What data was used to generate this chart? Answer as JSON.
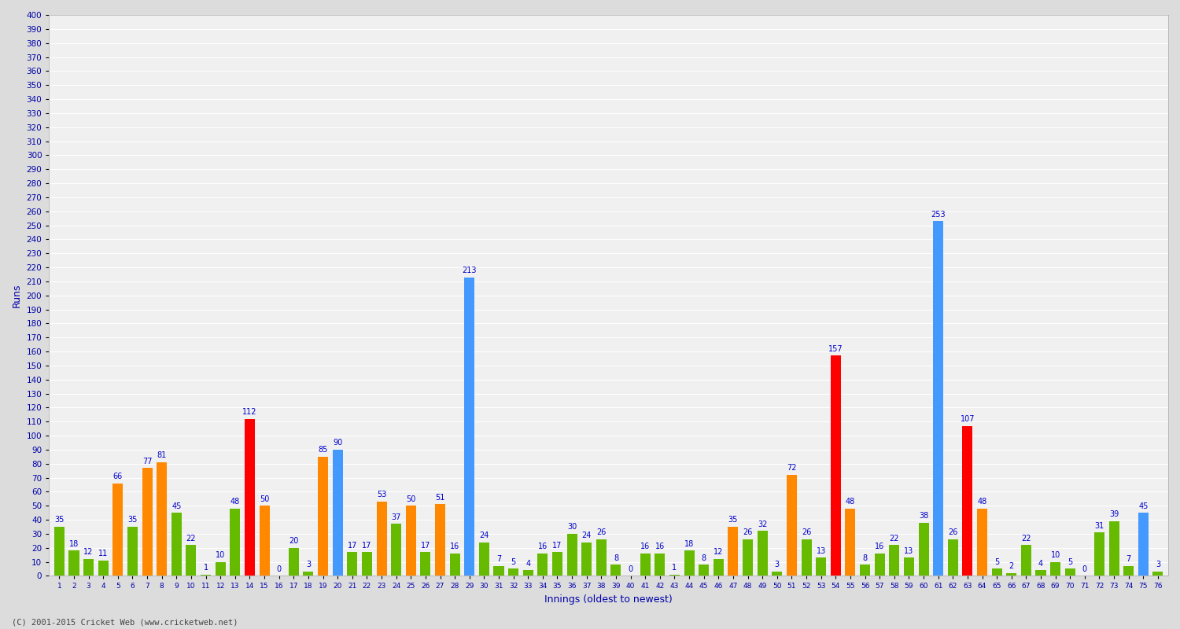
{
  "xlabel": "Innings (oldest to newest)",
  "ylabel": "Runs",
  "background_color": "#dcdcdc",
  "plot_background": "#f0f0f0",
  "bar_width": 0.7,
  "ylim": [
    0,
    400
  ],
  "yticks": [
    0,
    10,
    20,
    30,
    40,
    50,
    60,
    70,
    80,
    90,
    100,
    110,
    120,
    130,
    140,
    150,
    160,
    170,
    180,
    190,
    200,
    210,
    220,
    230,
    240,
    250,
    260,
    270,
    280,
    290,
    300,
    310,
    320,
    330,
    340,
    350,
    360,
    370,
    380,
    390,
    400
  ],
  "innings": [
    1,
    2,
    3,
    4,
    5,
    6,
    7,
    8,
    9,
    10,
    11,
    12,
    13,
    14,
    15,
    16,
    17,
    18,
    19,
    20,
    21,
    22,
    23,
    24,
    25,
    26,
    27,
    28,
    29,
    30,
    31,
    32,
    33,
    34,
    35,
    36,
    37,
    38,
    39,
    40,
    41,
    42,
    43,
    44,
    45,
    46,
    47,
    48,
    49,
    50,
    51,
    52,
    53,
    54,
    55,
    56,
    57,
    58,
    59,
    60,
    61,
    62,
    63,
    64,
    65,
    66,
    67,
    68,
    69,
    70,
    71,
    72,
    73,
    74,
    75,
    76
  ],
  "runs": [
    35,
    18,
    12,
    11,
    66,
    35,
    77,
    81,
    45,
    22,
    1,
    10,
    48,
    112,
    50,
    0,
    20,
    3,
    85,
    90,
    17,
    17,
    53,
    37,
    50,
    17,
    51,
    16,
    213,
    24,
    7,
    5,
    4,
    16,
    17,
    30,
    24,
    26,
    8,
    0,
    16,
    16,
    1,
    18,
    8,
    12,
    35,
    26,
    32,
    3,
    72,
    26,
    13,
    157,
    48,
    8,
    16,
    22,
    13,
    38,
    253,
    26,
    107,
    48,
    5,
    2,
    22,
    4,
    10,
    5,
    0,
    31,
    39,
    7,
    45,
    3
  ],
  "colors": [
    "#66bb00",
    "#66bb00",
    "#66bb00",
    "#66bb00",
    "#ff8800",
    "#66bb00",
    "#ff8800",
    "#ff8800",
    "#66bb00",
    "#66bb00",
    "#66bb00",
    "#66bb00",
    "#66bb00",
    "#ff0000",
    "#ff8800",
    "#66bb00",
    "#66bb00",
    "#66bb00",
    "#ff8800",
    "#4499ff",
    "#66bb00",
    "#66bb00",
    "#ff8800",
    "#66bb00",
    "#ff8800",
    "#66bb00",
    "#ff8800",
    "#66bb00",
    "#4499ff",
    "#66bb00",
    "#66bb00",
    "#66bb00",
    "#66bb00",
    "#66bb00",
    "#66bb00",
    "#66bb00",
    "#66bb00",
    "#66bb00",
    "#66bb00",
    "#66bb00",
    "#66bb00",
    "#66bb00",
    "#66bb00",
    "#66bb00",
    "#66bb00",
    "#66bb00",
    "#ff8800",
    "#66bb00",
    "#66bb00",
    "#66bb00",
    "#ff8800",
    "#66bb00",
    "#66bb00",
    "#ff0000",
    "#ff8800",
    "#66bb00",
    "#66bb00",
    "#66bb00",
    "#66bb00",
    "#66bb00",
    "#4499ff",
    "#66bb00",
    "#ff0000",
    "#ff8800",
    "#66bb00",
    "#66bb00",
    "#66bb00",
    "#66bb00",
    "#66bb00",
    "#66bb00",
    "#66bb00",
    "#66bb00",
    "#66bb00",
    "#66bb00",
    "#4499ff",
    "#66bb00"
  ],
  "label_color": "#0000cc",
  "label_fontsize": 7,
  "axis_label_color": "#0000aa",
  "tick_color": "#333333",
  "footer": "(C) 2001-2015 Cricket Web (www.cricketweb.net)"
}
